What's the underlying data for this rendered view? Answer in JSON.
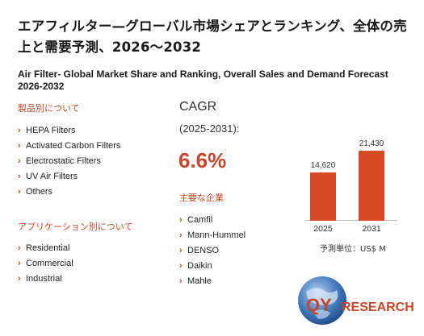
{
  "title_jp": "エアフィルター—グローバル市場シェアとランキング、全体の売上と需要予測、2026〜2032",
  "title_en": "Air Filter- Global Market Share and Ranking, Overall Sales and Demand Forecast 2026-2032",
  "product_section": {
    "heading": "製品別について",
    "items": [
      "HEPA Filters",
      "Activated Carbon Filters",
      "Electrostatic Filters",
      "UV Air Filters",
      "Others"
    ]
  },
  "application_section": {
    "heading": "アプリケーション別について",
    "items": [
      "Residential",
      "Commercial",
      "Industrial"
    ]
  },
  "cagr": {
    "label": "CAGR",
    "period": "(2025-2031):",
    "value": "6.6%"
  },
  "companies_section": {
    "heading": "主要な企業",
    "items": [
      "Camfil",
      "Mann-Hummel",
      "DENSO",
      "Daikin",
      "Mahle"
    ]
  },
  "chart_data": {
    "type": "bar",
    "categories": [
      "2025",
      "2031"
    ],
    "values": [
      14620,
      21430
    ],
    "value_labels": [
      "14,620",
      "21,430"
    ],
    "ylim": [
      0,
      25000
    ],
    "unit": "予測単位：US$ M",
    "bar_color": "#d64a24",
    "grid": false
  },
  "logo": {
    "text_qy": "QY",
    "text_research": "RESEARCH",
    "brand_color": "#c8452a",
    "globe_color": "#4a7fc1"
  },
  "colors": {
    "accent": "#c8452a"
  }
}
